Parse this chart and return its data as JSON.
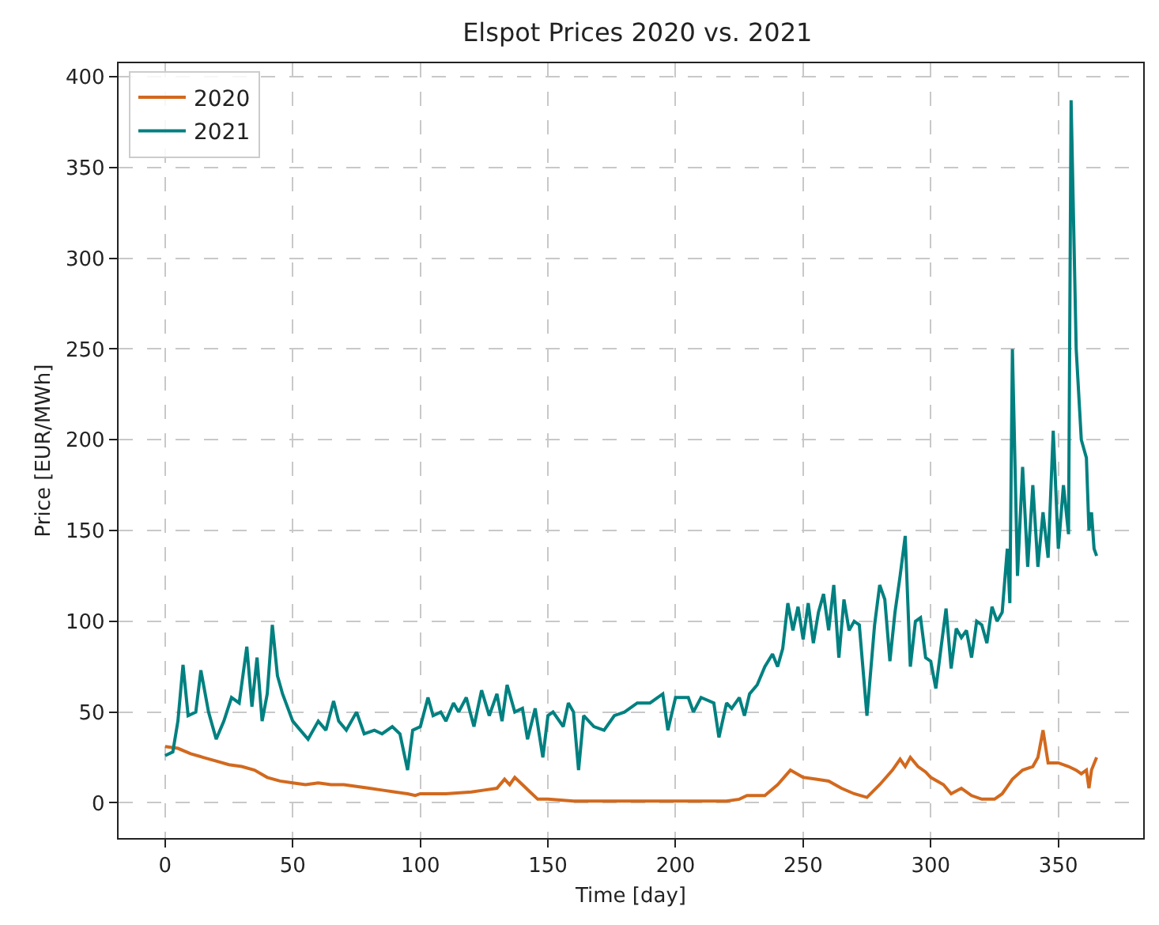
{
  "chart_data": {
    "type": "line",
    "title": "Elspot Prices 2020 vs. 2021",
    "xlabel": "Time [day]",
    "ylabel": "Price [EUR/MWh]",
    "xlim": [
      -18.25,
      383.25
    ],
    "ylim": [
      -19.4,
      407.4
    ],
    "xticks": [
      0,
      50,
      100,
      150,
      200,
      250,
      300,
      350
    ],
    "yticks": [
      0,
      50,
      100,
      150,
      200,
      250,
      300,
      350,
      400
    ],
    "grid": true,
    "legend": "top left",
    "marker": "none",
    "series": [
      {
        "name": "2020",
        "color": "#d2691e",
        "x": [
          0,
          5,
          10,
          15,
          20,
          25,
          30,
          35,
          40,
          45,
          50,
          55,
          60,
          65,
          70,
          75,
          80,
          85,
          90,
          95,
          98,
          100,
          110,
          120,
          125,
          130,
          133,
          135,
          137,
          140,
          143,
          146,
          150,
          160,
          180,
          200,
          220,
          225,
          228,
          235,
          240,
          245,
          250,
          255,
          260,
          265,
          270,
          275,
          280,
          285,
          288,
          290,
          292,
          295,
          298,
          300,
          305,
          308,
          312,
          316,
          320,
          325,
          328,
          332,
          336,
          340,
          342,
          344,
          346,
          350,
          354,
          357,
          359,
          361,
          362,
          363,
          365
        ],
        "values": [
          31,
          30,
          27,
          25,
          23,
          21,
          20,
          18,
          14,
          12,
          11,
          10,
          11,
          10,
          10,
          9,
          8,
          7,
          6,
          5,
          4,
          5,
          5,
          6,
          7,
          8,
          13,
          10,
          14,
          10,
          6,
          2,
          2,
          1,
          1,
          1,
          1,
          2,
          4,
          4,
          10,
          18,
          14,
          13,
          12,
          8,
          5,
          3,
          10,
          18,
          24,
          20,
          25,
          20,
          17,
          14,
          10,
          5,
          8,
          4,
          2,
          2,
          5,
          13,
          18,
          20,
          25,
          40,
          22,
          22,
          20,
          18,
          16,
          18,
          8,
          18,
          25
        ]
      },
      {
        "name": "2021",
        "color": "#008080",
        "x": [
          0,
          3,
          5,
          7,
          9,
          12,
          14,
          17,
          20,
          23,
          26,
          29,
          32,
          34,
          36,
          38,
          40,
          42,
          44,
          46,
          50,
          53,
          56,
          60,
          63,
          66,
          68,
          71,
          75,
          78,
          82,
          85,
          89,
          92,
          95,
          97,
          100,
          103,
          105,
          108,
          110,
          113,
          115,
          118,
          121,
          124,
          127,
          130,
          132,
          134,
          137,
          140,
          142,
          145,
          148,
          150,
          152,
          156,
          158,
          160,
          162,
          164,
          168,
          172,
          176,
          180,
          185,
          190,
          195,
          197,
          200,
          205,
          207,
          210,
          215,
          217,
          220,
          222,
          225,
          227,
          229,
          232,
          235,
          238,
          240,
          242,
          244,
          246,
          248,
          250,
          252,
          254,
          256,
          258,
          260,
          262,
          264,
          266,
          268,
          270,
          272,
          275,
          278,
          280,
          282,
          284,
          286,
          288,
          290,
          292,
          294,
          296,
          298,
          300,
          302,
          304,
          306,
          308,
          310,
          312,
          314,
          316,
          318,
          320,
          322,
          324,
          326,
          328,
          330,
          331,
          332,
          334,
          336,
          338,
          340,
          342,
          344,
          346,
          348,
          350,
          352,
          354,
          355,
          357,
          359,
          361,
          362,
          363,
          364,
          365
        ],
        "values": [
          26,
          28,
          45,
          76,
          48,
          50,
          73,
          50,
          35,
          45,
          58,
          55,
          86,
          53,
          80,
          45,
          60,
          98,
          70,
          60,
          45,
          40,
          35,
          45,
          40,
          56,
          45,
          40,
          50,
          38,
          40,
          38,
          42,
          38,
          18,
          40,
          42,
          58,
          48,
          50,
          45,
          55,
          50,
          58,
          42,
          62,
          48,
          60,
          45,
          65,
          50,
          52,
          35,
          52,
          25,
          48,
          50,
          42,
          55,
          50,
          18,
          48,
          42,
          40,
          48,
          50,
          55,
          55,
          60,
          40,
          58,
          58,
          50,
          58,
          55,
          36,
          55,
          52,
          58,
          48,
          60,
          65,
          75,
          82,
          75,
          85,
          110,
          95,
          108,
          90,
          110,
          88,
          105,
          115,
          95,
          120,
          80,
          112,
          95,
          100,
          98,
          48,
          98,
          120,
          112,
          78,
          105,
          125,
          147,
          75,
          100,
          102,
          80,
          78,
          63,
          85,
          107,
          74,
          96,
          91,
          95,
          80,
          100,
          98,
          88,
          108,
          100,
          105,
          140,
          110,
          250,
          125,
          185,
          130,
          175,
          130,
          160,
          135,
          205,
          140,
          175,
          148,
          387,
          250,
          200,
          190,
          150,
          160,
          140,
          136
        ]
      }
    ]
  }
}
